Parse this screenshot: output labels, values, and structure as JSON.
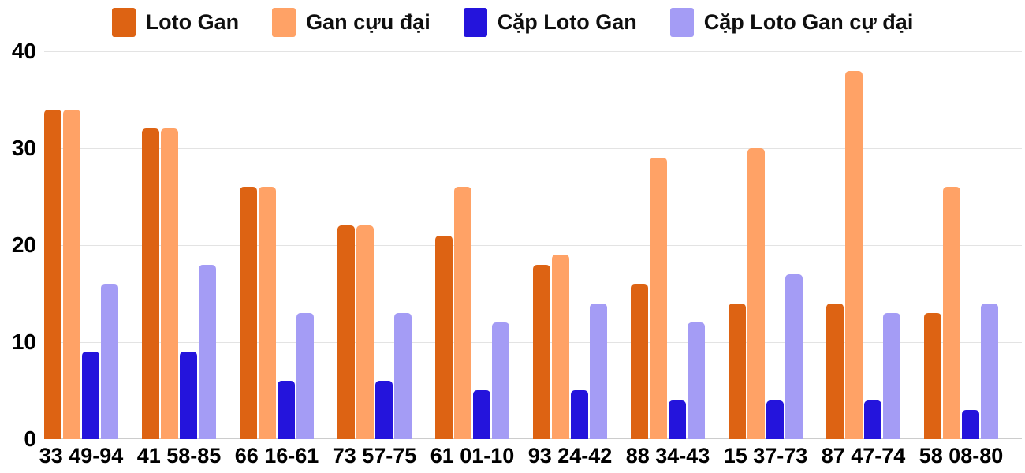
{
  "chart_data": {
    "type": "bar",
    "title": "",
    "xlabel": "",
    "ylabel": "",
    "categories": [
      "33 49-94",
      "41 58-85",
      "66 16-61",
      "73 57-75",
      "61 01-10",
      "93 24-42",
      "88 34-43",
      "15 37-73",
      "87 47-74",
      "58 08-80"
    ],
    "series": [
      {
        "name": "Loto Gan",
        "color": "#DD6313",
        "values": [
          34,
          32,
          26,
          22,
          21,
          18,
          16,
          14,
          14,
          13
        ]
      },
      {
        "name": "Gan cựu đại",
        "color": "#FFA266",
        "values": [
          34,
          32,
          26,
          22,
          26,
          19,
          29,
          30,
          38,
          26
        ]
      },
      {
        "name": "Cặp Loto Gan",
        "color": "#2414DC",
        "values": [
          9,
          9,
          6,
          6,
          5,
          5,
          4,
          4,
          4,
          3
        ]
      },
      {
        "name": "Cặp Loto Gan cự đại",
        "color": "#A49CF5",
        "values": [
          16,
          18,
          13,
          13,
          12,
          14,
          12,
          17,
          13,
          14
        ]
      }
    ],
    "ylim": [
      0,
      40
    ],
    "yticks": [
      0,
      10,
      20,
      30,
      40
    ],
    "grid": true,
    "legend_position": "top",
    "colors": {
      "gridline": "#e3e3e3",
      "baseline": "#cccccc",
      "label_text": "#000000"
    }
  }
}
